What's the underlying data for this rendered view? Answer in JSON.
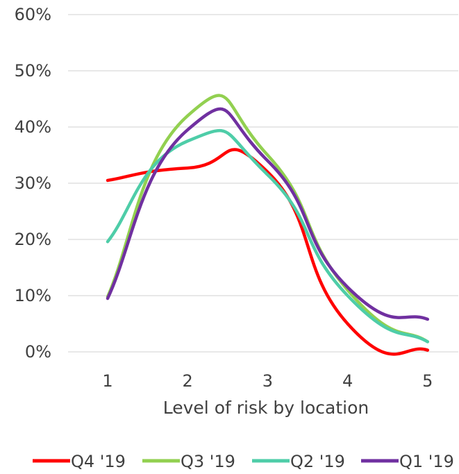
{
  "chart_data": {
    "type": "line",
    "title": "",
    "xlabel": "Level of risk by location",
    "ylabel": "",
    "x": [
      1,
      2,
      3,
      4,
      5
    ],
    "categories": [
      "1",
      "2",
      "3",
      "4",
      "5"
    ],
    "ylim": [
      0,
      60
    ],
    "yticks": [
      "0%",
      "10%",
      "20%",
      "30%",
      "40%",
      "50%",
      "60%"
    ],
    "grid": "horizontal",
    "legend_position": "bottom",
    "smooth": true,
    "series": [
      {
        "name": "Q4 '19",
        "color": "#ff0000",
        "values": [
          30.5,
          32.7,
          32.0,
          5.0,
          0.3
        ]
      },
      {
        "name": "Q3 '19",
        "color": "#92d050",
        "values": [
          9.8,
          42.0,
          35.0,
          11.0,
          1.8
        ]
      },
      {
        "name": "Q2 '19",
        "color": "#4ecda8",
        "values": [
          19.6,
          37.5,
          31.5,
          10.0,
          1.8
        ]
      },
      {
        "name": "Q1 '19",
        "color": "#7030a0",
        "values": [
          9.5,
          39.5,
          34.0,
          11.5,
          5.8
        ]
      }
    ]
  }
}
